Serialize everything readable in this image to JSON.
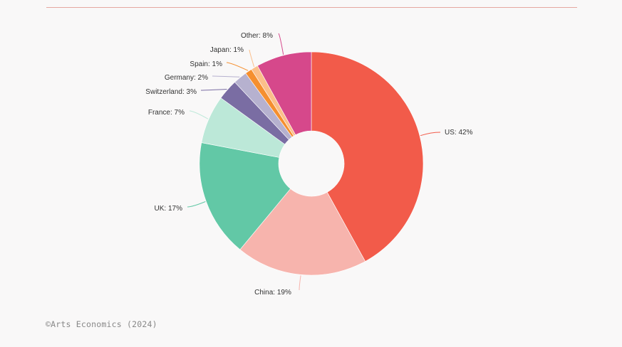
{
  "chart_data": {
    "type": "pie",
    "donut": true,
    "start": "top",
    "direction": "clockwise",
    "slices": [
      {
        "label": "US",
        "value": 42,
        "color": "#f25b4a"
      },
      {
        "label": "China",
        "value": 19,
        "color": "#f7b4ad"
      },
      {
        "label": "UK",
        "value": 17,
        "color": "#62c8a6"
      },
      {
        "label": "France",
        "value": 7,
        "color": "#bce8d8"
      },
      {
        "label": "Switzerland",
        "value": 3,
        "color": "#7a6da3"
      },
      {
        "label": "Germany",
        "value": 2,
        "color": "#b6b1cf"
      },
      {
        "label": "Spain",
        "value": 1,
        "color": "#f58f2f"
      },
      {
        "label": "Japan",
        "value": 1,
        "color": "#fbbf8a"
      },
      {
        "label": "Other",
        "value": 8,
        "color": "#d6488b"
      }
    ]
  },
  "source": "©Arts Economics (2024)"
}
